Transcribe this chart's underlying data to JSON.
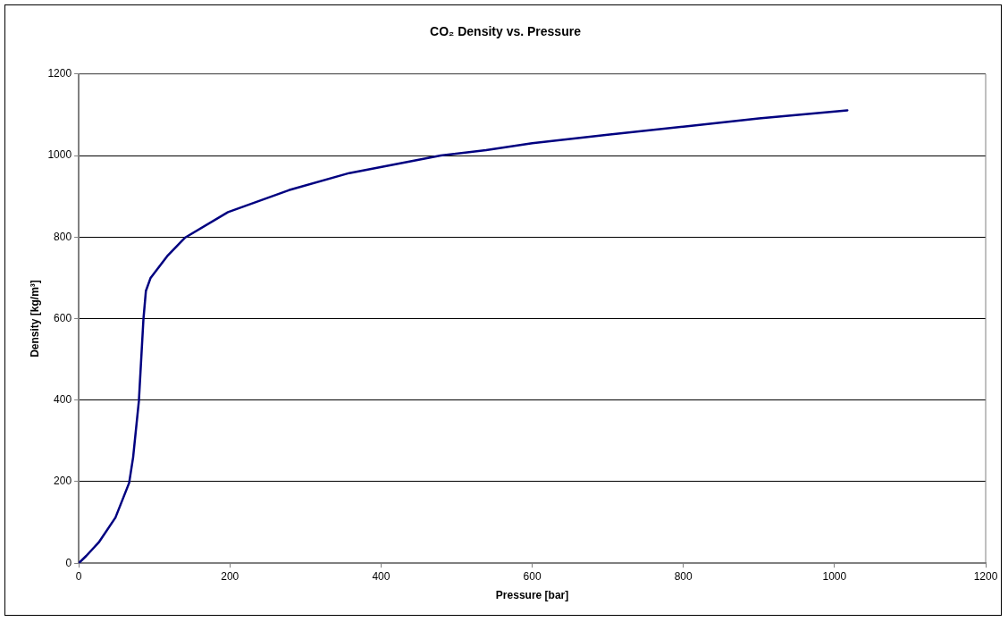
{
  "chart_data": {
    "type": "line",
    "title": "CO₂ Density vs. Pressure",
    "xlabel": "Pressure [bar]",
    "ylabel": "Density [kg/m³]",
    "series": [
      {
        "color": "#000080",
        "x": [
          0,
          10,
          26.5,
          48.6,
          66.7,
          72,
          79.6,
          85.6,
          88.9,
          94.9,
          117,
          141,
          197.5,
          278,
          358,
          479,
          539,
          600,
          700,
          800,
          900,
          1017
        ],
        "values": [
          0,
          18,
          51,
          112,
          197,
          260,
          398,
          598,
          668,
          699,
          753,
          799,
          861,
          915,
          957,
          1000,
          1013,
          1030,
          1051,
          1071,
          1091,
          1111
        ]
      }
    ],
    "xlim": [
      0,
      1200
    ],
    "xticks": [
      0,
      200,
      400,
      600,
      800,
      1000,
      1200
    ],
    "ylim": [
      0,
      1200
    ],
    "yticks": [
      0,
      200,
      400,
      600,
      800,
      1000,
      1200
    ],
    "grid": "y",
    "legend": false,
    "marker": "none",
    "line_style": "solid"
  }
}
